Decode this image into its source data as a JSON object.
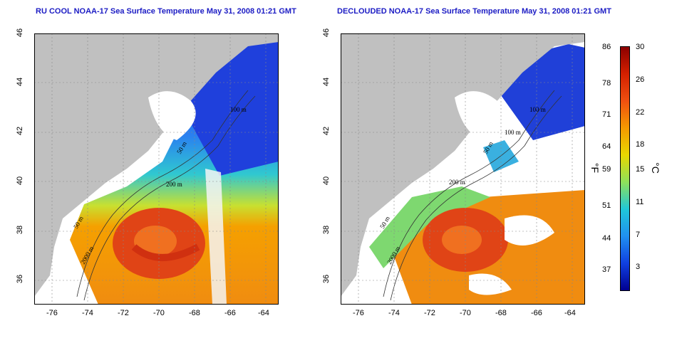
{
  "left_panel": {
    "title": "RU COOL NOAA-17 Sea Surface Temperature May 31, 2008 01:21 GMT",
    "contours": [
      "100 m",
      "50 m",
      "200 m",
      "50 m",
      "2000 m"
    ]
  },
  "right_panel": {
    "title": "DECLOUDED NOAA-17 Sea Surface Temperature May 31, 2008 01:21 GMT",
    "contours": [
      "100 m",
      "50 m",
      "100 m",
      "200 m",
      "50 m",
      "2000 m"
    ]
  },
  "x_ticks": [
    "-76",
    "-74",
    "-72",
    "-70",
    "-68",
    "-66",
    "-64"
  ],
  "y_ticks": [
    "36",
    "38",
    "40",
    "42",
    "44",
    "46"
  ],
  "colorbar": {
    "fahrenheit": [
      "86",
      "78",
      "71",
      "64",
      "59",
      "51",
      "44",
      "37"
    ],
    "celsius": [
      "30",
      "26",
      "22",
      "18",
      "15",
      "11",
      "7",
      "3"
    ],
    "unit_f": "°F",
    "unit_c": "°C",
    "colors": [
      "#8b0000",
      "#d42000",
      "#f05010",
      "#f59a00",
      "#e8d800",
      "#8ee05a",
      "#20c8d8",
      "#2090f0",
      "#1040e0",
      "#000090"
    ]
  },
  "colors": {
    "land": "#c0c0c0",
    "title": "#1c1cc4",
    "ocean_cool": "#2b5ee8",
    "ocean_warm": "#f07a10",
    "eddy": "#d83a10"
  }
}
